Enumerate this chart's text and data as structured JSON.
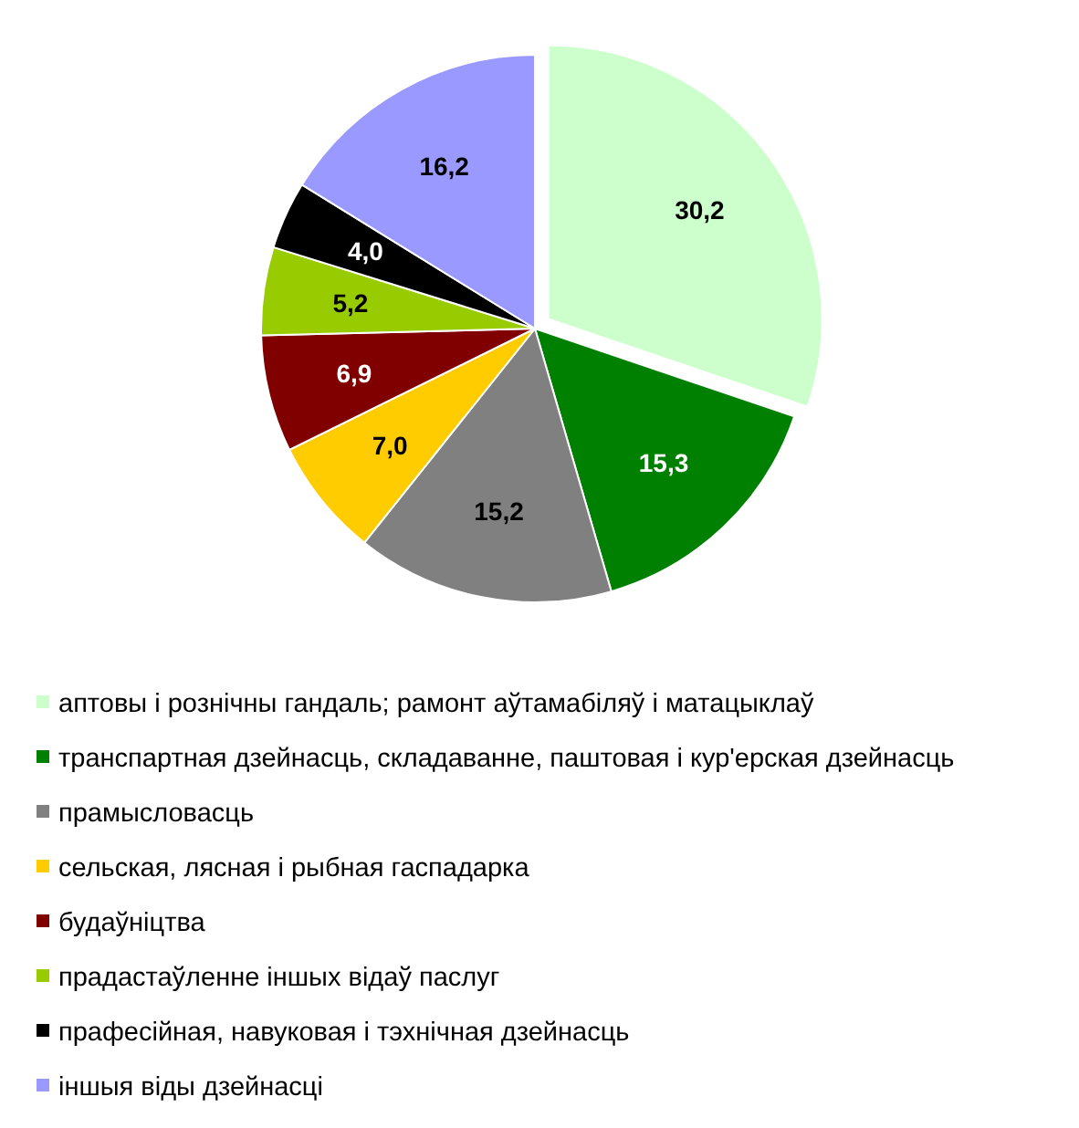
{
  "chart_data": {
    "type": "pie",
    "categories": [
      "аптовы і рознічны гандаль; рамонт аўтамабіляў і матацыклаў",
      "транспартная дзейнасць, складаванне, паштовая і кур'ерская дзейнасць",
      "прамысловасць",
      "сельская, лясная і рыбная гаспадарка",
      "будаўніцтва",
      "прадастаўленне іншых відаў паслуг",
      "прафесійная, навуковая і тэхнічная дзейнасць",
      "іншыя віды дзейнасці"
    ],
    "values": [
      30.2,
      15.3,
      15.2,
      7.0,
      6.9,
      5.2,
      4.0,
      16.2
    ],
    "value_labels": [
      "30,2",
      "15,3",
      "15,2",
      "7,0",
      "6,9",
      "5,2",
      "4,0",
      "16,2"
    ],
    "colors": [
      "#ccffcc",
      "#008000",
      "#808080",
      "#ffcc00",
      "#800000",
      "#99cc00",
      "#000000",
      "#9999ff"
    ],
    "legend": "bottom"
  }
}
